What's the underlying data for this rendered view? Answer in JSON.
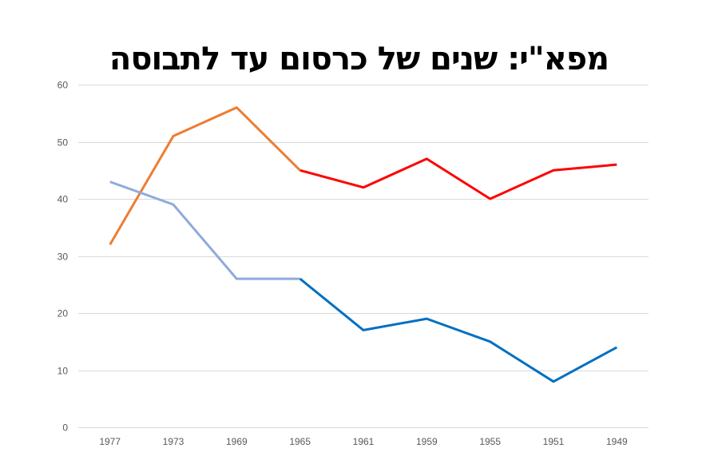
{
  "chart_data": {
    "type": "line",
    "title": "מפא\"י: שנים של כרסום עד לתבוסה",
    "xlabel": "",
    "ylabel": "",
    "categories": [
      "1977",
      "1973",
      "1969",
      "1965",
      "1961",
      "1959",
      "1955",
      "1951",
      "1949"
    ],
    "ylim": [
      0,
      60
    ],
    "yticks": [
      0,
      10,
      20,
      30,
      40,
      50,
      60
    ],
    "grid": true,
    "legend": "none",
    "series": [
      {
        "name": "upper-series",
        "values": [
          32,
          51,
          56,
          45,
          42,
          47,
          40,
          45,
          46
        ],
        "segment_colors": [
          {
            "from": 0,
            "to": 3,
            "color": "#ED7D31"
          },
          {
            "from": 3,
            "to": 8,
            "color": "#FF0000"
          }
        ]
      },
      {
        "name": "lower-series",
        "values": [
          43,
          39,
          26,
          26,
          17,
          19,
          15,
          8,
          14
        ],
        "segment_colors": [
          {
            "from": 0,
            "to": 3,
            "color": "#8FAADC"
          },
          {
            "from": 3,
            "to": 8,
            "color": "#0070C0"
          }
        ]
      }
    ]
  },
  "colors": {
    "grid": "#D9D9D9",
    "tick_text": "#595959"
  }
}
